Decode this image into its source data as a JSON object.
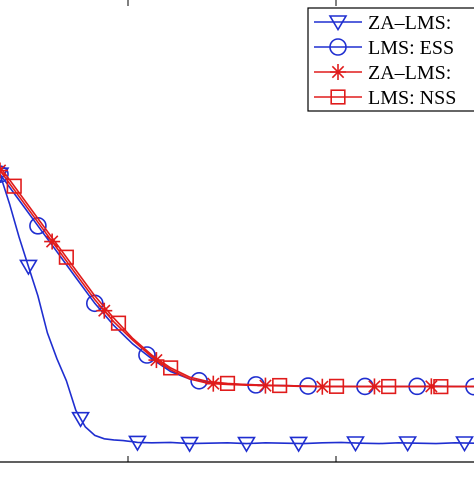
{
  "chart_data": {
    "type": "line",
    "title": "",
    "xlabel": "",
    "ylabel": "",
    "xlim": [
      0,
      100
    ],
    "ylim": [
      0,
      100
    ],
    "grid": false,
    "legend_position": "top-right",
    "series": [
      {
        "name": "ZA–LMS:",
        "color": "#1f2ed0",
        "marker": "triangle-down",
        "x": [
          0,
          2,
          4,
          6,
          8,
          10,
          12,
          14,
          16,
          18,
          20,
          22,
          24,
          26,
          28,
          29,
          32,
          36,
          40,
          44,
          48,
          52,
          56,
          60,
          64,
          68,
          72,
          76,
          80,
          84,
          88,
          92,
          96,
          100
        ],
        "y": [
          78,
          70,
          61,
          53,
          45,
          35,
          28,
          22,
          14,
          9.5,
          7.2,
          6.3,
          6.0,
          5.8,
          5.5,
          5.3,
          5.2,
          5.3,
          5.0,
          5.1,
          5.2,
          5.0,
          5.2,
          5.1,
          5.0,
          5.2,
          5.3,
          5.1,
          5.0,
          5.2,
          5.1,
          5.0,
          5.2,
          5.1
        ],
        "marker_x": [
          0,
          6,
          17,
          29,
          40,
          52,
          63,
          75,
          86,
          98
        ]
      },
      {
        "name": "LMS: ESS",
        "color": "#1f2ed0",
        "marker": "circle",
        "x": [
          0,
          4,
          8,
          12,
          16,
          20,
          24,
          28,
          32,
          36,
          40,
          44,
          48,
          52,
          56,
          60,
          64,
          68,
          72,
          76,
          80,
          84,
          88,
          92,
          96,
          100
        ],
        "y": [
          78,
          71,
          64,
          57,
          50,
          43,
          37,
          32,
          28,
          24.5,
          22.5,
          21.5,
          21.2,
          21.0,
          20.8,
          20.7,
          20.6,
          20.5,
          20.5,
          20.5,
          20.4,
          20.5,
          20.5,
          20.6,
          20.5,
          20.4
        ],
        "marker_x": [
          0,
          8,
          20,
          31,
          42,
          54,
          65,
          77,
          88,
          100
        ]
      },
      {
        "name": "ZA–LMS:",
        "color": "#e01b1b",
        "marker": "star",
        "x": [
          0,
          4,
          8,
          12,
          16,
          20,
          24,
          28,
          32,
          36,
          40,
          44,
          48,
          52,
          56,
          60,
          64,
          68,
          72,
          76,
          80,
          84,
          88,
          92,
          96,
          100
        ],
        "y": [
          79,
          72,
          65,
          58,
          51,
          44,
          38,
          33,
          28.5,
          25,
          22.5,
          21.3,
          21.0,
          20.8,
          20.7,
          20.6,
          20.5,
          20.4,
          20.5,
          20.4,
          20.5,
          20.4,
          20.5,
          20.5,
          20.4,
          20.5
        ],
        "marker_x": [
          0,
          11,
          22,
          33,
          45,
          56,
          68,
          79,
          91
        ]
      },
      {
        "name": "LMS: NSS",
        "color": "#e01b1b",
        "marker": "square",
        "x": [
          0,
          4,
          8,
          12,
          16,
          20,
          24,
          28,
          32,
          36,
          40,
          44,
          48,
          52,
          56,
          60,
          64,
          68,
          72,
          76,
          80,
          84,
          88,
          92,
          96,
          100
        ],
        "y": [
          80,
          73,
          66,
          59,
          52,
          45,
          39,
          33.5,
          29,
          25.5,
          23,
          21.8,
          21.3,
          21.0,
          20.8,
          20.7,
          20.6,
          20.5,
          20.5,
          20.5,
          20.4,
          20.5,
          20.5,
          20.4,
          20.5,
          20.5
        ],
        "marker_x": [
          3,
          14,
          25,
          36,
          48,
          59,
          71,
          82,
          93
        ]
      }
    ]
  }
}
